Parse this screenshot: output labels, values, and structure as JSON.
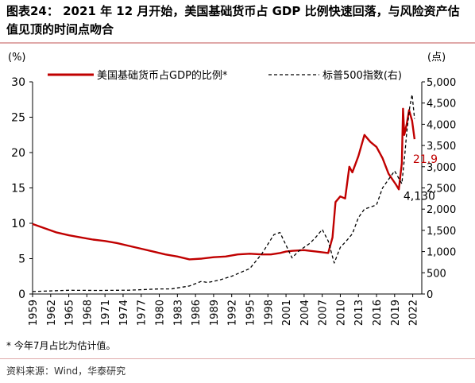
{
  "title": "图表24：  2021 年 12 月开始，美国基础货币占 GDP 比例快速回落，与风险资产估值见顶的时间点吻合",
  "note": "* 今年7月占比为估计值。",
  "source": "资料来源：Wind，华泰研究",
  "chart_data": {
    "type": "line",
    "title": "",
    "left_axis": {
      "unit_label": "(%)",
      "range": [
        0,
        30
      ],
      "ticks": [
        0,
        5,
        10,
        15,
        20,
        25,
        30
      ]
    },
    "right_axis": {
      "unit_label": "(点)",
      "range": [
        0,
        5000
      ],
      "ticks": [
        "0",
        "500",
        "1,000",
        "1,500",
        "2,000",
        "2,500",
        "3,000",
        "3,500",
        "4,000",
        "4,500",
        "5,000"
      ]
    },
    "x_axis": {
      "range": [
        1959,
        2023.5
      ],
      "ticks": [
        1959,
        1962,
        1965,
        1968,
        1971,
        1974,
        1977,
        1980,
        1983,
        1986,
        1989,
        1992,
        1995,
        1998,
        2001,
        2004,
        2007,
        2010,
        2013,
        2016,
        2019,
        2022
      ]
    },
    "grid": false,
    "legend_position": "top",
    "series": [
      {
        "name": "美国基础货币占GDP的比例*",
        "axis": "left",
        "color": "#c00000",
        "style": "solid",
        "points": [
          [
            1959,
            9.9
          ],
          [
            1961,
            9.3
          ],
          [
            1963,
            8.7
          ],
          [
            1965,
            8.3
          ],
          [
            1967,
            8.0
          ],
          [
            1969,
            7.7
          ],
          [
            1971,
            7.5
          ],
          [
            1973,
            7.2
          ],
          [
            1975,
            6.8
          ],
          [
            1977,
            6.4
          ],
          [
            1979,
            6.0
          ],
          [
            1981,
            5.6
          ],
          [
            1983,
            5.3
          ],
          [
            1985,
            4.9
          ],
          [
            1987,
            5.0
          ],
          [
            1989,
            5.2
          ],
          [
            1991,
            5.3
          ],
          [
            1993,
            5.6
          ],
          [
            1995,
            5.7
          ],
          [
            1997,
            5.6
          ],
          [
            1998.5,
            5.6
          ],
          [
            2000,
            5.8
          ],
          [
            2001,
            6.0
          ],
          [
            2002,
            6.1
          ],
          [
            2004,
            6.2
          ],
          [
            2006,
            6.0
          ],
          [
            2008,
            5.8
          ],
          [
            2008.7,
            8.0
          ],
          [
            2009.2,
            13.0
          ],
          [
            2010,
            13.8
          ],
          [
            2010.8,
            13.5
          ],
          [
            2011.5,
            18.0
          ],
          [
            2012,
            17.2
          ],
          [
            2013,
            19.5
          ],
          [
            2014,
            22.5
          ],
          [
            2015,
            21.5
          ],
          [
            2016,
            20.8
          ],
          [
            2017,
            19.2
          ],
          [
            2018,
            17.0
          ],
          [
            2019.2,
            15.5
          ],
          [
            2019.7,
            14.8
          ],
          [
            2020.2,
            18.5
          ],
          [
            2020.4,
            26.2
          ],
          [
            2020.6,
            22.5
          ],
          [
            2021,
            24.0
          ],
          [
            2021.4,
            26.0
          ],
          [
            2021.9,
            24.5
          ],
          [
            2022.3,
            21.9
          ]
        ]
      },
      {
        "name": "标普500指数(右)",
        "axis": "right",
        "color": "#000000",
        "style": "dashed",
        "points": [
          [
            1959,
            58
          ],
          [
            1965,
            88
          ],
          [
            1970,
            84
          ],
          [
            1975,
            90
          ],
          [
            1980,
            120
          ],
          [
            1982,
            120
          ],
          [
            1985,
            190
          ],
          [
            1987,
            300
          ],
          [
            1988,
            270
          ],
          [
            1990,
            330
          ],
          [
            1992,
            420
          ],
          [
            1995,
            600
          ],
          [
            1997,
            950
          ],
          [
            1999,
            1400
          ],
          [
            2000,
            1450
          ],
          [
            2001,
            1150
          ],
          [
            2002,
            850
          ],
          [
            2003,
            1000
          ],
          [
            2005,
            1200
          ],
          [
            2006,
            1350
          ],
          [
            2007,
            1520
          ],
          [
            2008,
            1250
          ],
          [
            2009,
            730
          ],
          [
            2010,
            1100
          ],
          [
            2011,
            1250
          ],
          [
            2012,
            1420
          ],
          [
            2013,
            1800
          ],
          [
            2014,
            2000
          ],
          [
            2016,
            2100
          ],
          [
            2017,
            2500
          ],
          [
            2018,
            2700
          ],
          [
            2019,
            2900
          ],
          [
            2020.2,
            2600
          ],
          [
            2020.7,
            3300
          ],
          [
            2021,
            3800
          ],
          [
            2021.5,
            4400
          ],
          [
            2021.9,
            4700
          ],
          [
            2022.3,
            4130
          ]
        ]
      }
    ],
    "annotations": [
      {
        "text": "21.9",
        "series": "美国基础货币占GDP的比例*",
        "color": "#c00000"
      },
      {
        "text": "4,130",
        "series": "标普500指数(右)",
        "color": "#000000"
      }
    ]
  }
}
